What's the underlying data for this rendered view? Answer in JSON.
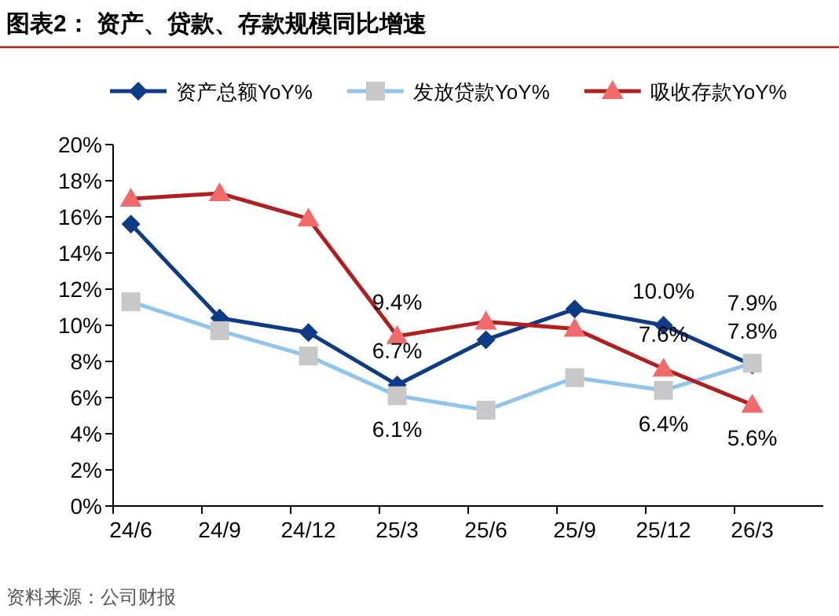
{
  "chart_data": {
    "type": "line",
    "title": "图表2：  资产、贷款、存款规模同比增速",
    "categories": [
      "24/6",
      "24/9",
      "24/12",
      "25/3",
      "25/6",
      "25/9",
      "25/12",
      "26/3"
    ],
    "series": [
      {
        "name": "资产总额YoY%",
        "color": "#0d3b85",
        "marker": "diamond",
        "values": [
          15.6,
          10.4,
          9.6,
          6.7,
          9.2,
          10.9,
          10.0,
          7.8
        ],
        "value_labels": [
          null,
          null,
          null,
          "6.7%",
          null,
          null,
          "10.0%",
          "7.8%"
        ]
      },
      {
        "name": "发放贷款YoY%",
        "color": "#8fc4ec",
        "marker": "square",
        "colors": [
          "#c8c8c8",
          "#c8c8c8",
          "#c8c8c8",
          "#c8c8c8",
          "#c8c8c8",
          "#c8c8c8",
          "#c8c8c8",
          "#c8c8c8"
        ],
        "values": [
          11.3,
          9.7,
          8.3,
          6.1,
          5.3,
          7.1,
          6.4,
          7.9
        ],
        "value_labels": [
          null,
          null,
          null,
          "6.1%",
          null,
          null,
          "6.4%",
          "7.9%"
        ]
      },
      {
        "name": "吸收存款YoY%",
        "color": "#b01e1e",
        "marker": "triangle",
        "colors": [
          "#f26b6b",
          "#f26b6b",
          "#f26b6b",
          "#f26b6b",
          "#f26b6b",
          "#f26b6b",
          "#f26b6b",
          "#f26b6b"
        ],
        "values": [
          17.0,
          17.3,
          15.9,
          9.4,
          10.2,
          9.8,
          7.6,
          5.6
        ],
        "value_labels": [
          null,
          null,
          null,
          "9.4%",
          null,
          null,
          "7.6%",
          "5.6%"
        ]
      }
    ],
    "ylim": [
      0,
      20
    ],
    "yticks": [
      {
        "value": 0,
        "label": "0%"
      },
      {
        "value": 2,
        "label": "2%"
      },
      {
        "value": 4,
        "label": "4%"
      },
      {
        "value": 6,
        "label": "6%"
      },
      {
        "value": 8,
        "label": "8%"
      },
      {
        "value": 10,
        "label": "10%"
      },
      {
        "value": 12,
        "label": "12%"
      },
      {
        "value": 14,
        "label": "14%"
      },
      {
        "value": 16,
        "label": "16%"
      },
      {
        "value": 18,
        "label": "18%"
      },
      {
        "value": 20,
        "label": "20%"
      }
    ],
    "grid": false,
    "legend": "top",
    "line_style": "solid",
    "annotations": [
      "资料来源：公司财报"
    ]
  }
}
